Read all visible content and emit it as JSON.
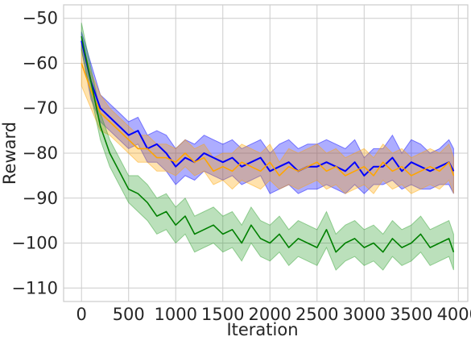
{
  "chart_data": {
    "type": "line",
    "xlabel": "Iteration",
    "ylabel": "Reward",
    "xlim": [
      -190,
      4100
    ],
    "ylim": [
      -113,
      -47
    ],
    "xticks": [
      0,
      500,
      1000,
      1500,
      2000,
      2500,
      3000,
      3500,
      4000
    ],
    "yticks": [
      -50,
      -60,
      -70,
      -80,
      -90,
      -100,
      -110
    ],
    "grid": true,
    "legend": "none",
    "series": [
      {
        "color": "#0000ff",
        "band_color": "#0000ff",
        "x": [
          0,
          100,
          200,
          300,
          400,
          500,
          600,
          700,
          800,
          900,
          1000,
          1100,
          1200,
          1300,
          1400,
          1500,
          1600,
          1700,
          1800,
          1900,
          2000,
          2100,
          2200,
          2300,
          2400,
          2500,
          2600,
          2700,
          2800,
          2900,
          3000,
          3100,
          3200,
          3300,
          3400,
          3500,
          3600,
          3700,
          3800,
          3900,
          3950
        ],
        "mean": [
          -55,
          -64,
          -70,
          -72,
          -74,
          -76,
          -75,
          -79,
          -78,
          -80,
          -83,
          -81,
          -82,
          -80,
          -81,
          -82,
          -81,
          -83,
          -82,
          -81,
          -84,
          -83,
          -82,
          -84,
          -83,
          -83,
          -82,
          -83,
          -84,
          -82,
          -85,
          -83,
          -83,
          -81,
          -84,
          -82,
          -83,
          -84,
          -83,
          -82,
          -84
        ],
        "lower": [
          -57,
          -68,
          -73,
          -75,
          -77,
          -79,
          -78,
          -82,
          -82,
          -84,
          -87,
          -85,
          -86,
          -84,
          -85,
          -86,
          -85,
          -87,
          -86,
          -85,
          -89,
          -88,
          -87,
          -89,
          -88,
          -88,
          -87,
          -88,
          -89,
          -87,
          -89,
          -87,
          -87,
          -86,
          -88,
          -87,
          -88,
          -88,
          -87,
          -87,
          -89
        ],
        "upper": [
          -53,
          -60,
          -67,
          -69,
          -71,
          -73,
          -72,
          -76,
          -75,
          -76,
          -79,
          -77,
          -78,
          -76,
          -77,
          -78,
          -77,
          -79,
          -78,
          -77,
          -80,
          -78,
          -77,
          -79,
          -78,
          -78,
          -77,
          -78,
          -79,
          -77,
          -81,
          -79,
          -79,
          -76,
          -80,
          -77,
          -78,
          -80,
          -79,
          -77,
          -79
        ]
      },
      {
        "color": "#ffa500",
        "band_color": "#ffa500",
        "x": [
          0,
          100,
          200,
          300,
          400,
          500,
          600,
          700,
          800,
          900,
          1000,
          1100,
          1200,
          1300,
          1400,
          1500,
          1600,
          1700,
          1800,
          1900,
          2000,
          2100,
          2200,
          2300,
          2400,
          2500,
          2600,
          2700,
          2800,
          2900,
          3000,
          3100,
          3200,
          3300,
          3400,
          3500,
          3600,
          3700,
          3800,
          3900,
          3950
        ],
        "mean": [
          -60,
          -66,
          -71,
          -73,
          -75,
          -77,
          -79,
          -79,
          -81,
          -81,
          -82,
          -80,
          -82,
          -81,
          -84,
          -83,
          -84,
          -82,
          -83,
          -84,
          -82,
          -85,
          -83,
          -84,
          -83,
          -82,
          -84,
          -83,
          -85,
          -84,
          -83,
          -85,
          -82,
          -84,
          -83,
          -85,
          -84,
          -83,
          -84,
          -82,
          -85
        ],
        "lower": [
          -65,
          -70,
          -75,
          -76,
          -78,
          -80,
          -82,
          -82,
          -84,
          -84,
          -85,
          -83,
          -85,
          -84,
          -87,
          -86,
          -88,
          -86,
          -87,
          -88,
          -86,
          -88,
          -87,
          -88,
          -87,
          -86,
          -88,
          -87,
          -89,
          -88,
          -87,
          -89,
          -86,
          -88,
          -87,
          -89,
          -88,
          -87,
          -88,
          -86,
          -89
        ],
        "upper": [
          -55,
          -62,
          -67,
          -70,
          -72,
          -74,
          -76,
          -76,
          -78,
          -78,
          -79,
          -77,
          -79,
          -78,
          -81,
          -80,
          -80,
          -78,
          -79,
          -80,
          -78,
          -82,
          -79,
          -80,
          -79,
          -78,
          -80,
          -79,
          -81,
          -80,
          -79,
          -81,
          -78,
          -80,
          -79,
          -81,
          -80,
          -79,
          -80,
          -78,
          -81
        ]
      },
      {
        "color": "#008000",
        "band_color": "#2ca02c",
        "x": [
          0,
          100,
          200,
          300,
          400,
          500,
          600,
          700,
          800,
          900,
          1000,
          1100,
          1200,
          1300,
          1400,
          1500,
          1600,
          1700,
          1800,
          1900,
          2000,
          2100,
          2200,
          2300,
          2400,
          2500,
          2600,
          2700,
          2800,
          2900,
          3000,
          3100,
          3200,
          3300,
          3400,
          3500,
          3600,
          3700,
          3800,
          3900,
          3950
        ],
        "mean": [
          -54,
          -64,
          -74,
          -80,
          -84,
          -88,
          -89,
          -91,
          -94,
          -93,
          -96,
          -94,
          -98,
          -97,
          -96,
          -98,
          -97,
          -100,
          -96,
          -99,
          -100,
          -98,
          -101,
          -99,
          -100,
          -101,
          -97,
          -102,
          -100,
          -99,
          -101,
          -100,
          -102,
          -99,
          -101,
          -100,
          -98,
          -101,
          -100,
          -99,
          -102
        ],
        "lower": [
          -57,
          -67,
          -77,
          -83,
          -87,
          -91,
          -93,
          -95,
          -98,
          -97,
          -100,
          -98,
          -102,
          -101,
          -100,
          -102,
          -101,
          -104,
          -100,
          -103,
          -104,
          -102,
          -105,
          -103,
          -104,
          -105,
          -101,
          -106,
          -104,
          -103,
          -105,
          -104,
          -106,
          -103,
          -105,
          -104,
          -102,
          -105,
          -104,
          -103,
          -106
        ],
        "upper": [
          -51,
          -61,
          -71,
          -77,
          -81,
          -85,
          -85,
          -87,
          -90,
          -89,
          -92,
          -90,
          -94,
          -93,
          -92,
          -94,
          -93,
          -96,
          -92,
          -95,
          -96,
          -94,
          -97,
          -95,
          -96,
          -97,
          -93,
          -98,
          -96,
          -95,
          -97,
          -96,
          -98,
          -95,
          -97,
          -96,
          -94,
          -97,
          -96,
          -95,
          -98
        ]
      }
    ]
  }
}
